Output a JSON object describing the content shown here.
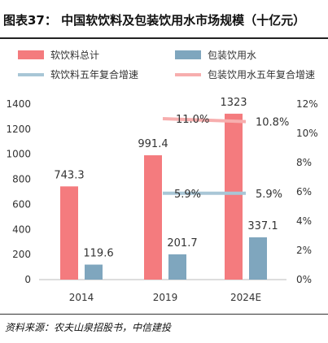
{
  "title": "图表37：    中国软饮料及包装饮用水市场规模（十亿元）",
  "source": "资料来源：农夫山泉招股书，中信建投",
  "colors": {
    "soft_drinks": "#F47B7E",
    "water": "#7FA6BE",
    "soft_cagr": "#F7AEAE",
    "water_cagr": "#A8C6D6"
  },
  "chart_data": {
    "type": "bar",
    "categories": [
      "2014",
      "2019",
      "2024E"
    ],
    "series": [
      {
        "name": "软饮料总计",
        "values": [
          743.3,
          991.4,
          1323
        ],
        "labels": [
          "743.3",
          "991.4",
          "1323"
        ],
        "axis": "left"
      },
      {
        "name": "包装饮用水",
        "values": [
          119.6,
          201.7,
          337.1
        ],
        "labels": [
          "119.6",
          "201.7",
          "337.1"
        ],
        "axis": "left"
      }
    ],
    "cagr_lines": [
      {
        "name": "软饮料五年复合增速",
        "segments": [
          {
            "from": "2019",
            "to": "2024E",
            "start": 11.0,
            "end": 10.8,
            "start_label": "11.0%",
            "end_label": "10.8%"
          }
        ]
      },
      {
        "name": "包装饮用水五年复合增速",
        "segments": [
          {
            "from": "2019",
            "to": "2024E",
            "start": 5.9,
            "end": 5.9,
            "start_label": "5.9%",
            "end_label": "5.9%"
          }
        ]
      }
    ],
    "legend": [
      "软饮料总计",
      "包装饮用水",
      "软饮料五年复合增速",
      "包装饮用水五年复合增速"
    ],
    "legend_placement": "top",
    "ylim": [
      0,
      1400
    ],
    "yticks": [
      "0",
      "200",
      "400",
      "600",
      "800",
      "1000",
      "1200",
      "1400"
    ],
    "y2lim": [
      0,
      12
    ],
    "y2ticks": [
      "0%",
      "2%",
      "4%",
      "6%",
      "8%",
      "10%",
      "12%"
    ],
    "grid": false
  }
}
